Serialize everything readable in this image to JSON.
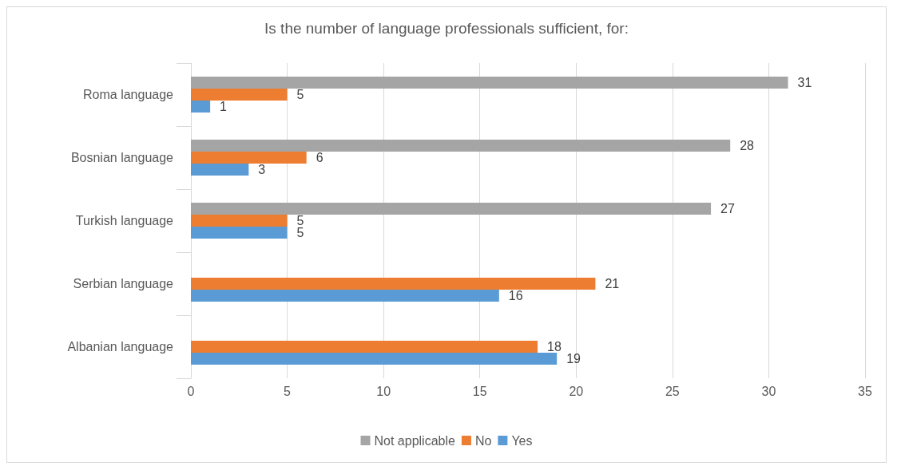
{
  "chart_data": {
    "type": "bar",
    "orientation": "horizontal",
    "title": "Is the number of language professionals sufficient, for:",
    "categories": [
      "Roma language",
      "Bosnian language",
      "Turkish language",
      "Serbian language",
      "Albanian language"
    ],
    "series": [
      {
        "name": "Not applicable",
        "color": "#a5a5a5",
        "values": [
          31,
          28,
          27,
          null,
          null
        ]
      },
      {
        "name": "No",
        "color": "#ed7d31",
        "values": [
          5,
          6,
          5,
          21,
          18
        ]
      },
      {
        "name": "Yes",
        "color": "#5b9bd5",
        "values": [
          1,
          3,
          5,
          16,
          19
        ]
      }
    ],
    "xlim": [
      0,
      35
    ],
    "xticks": [
      0,
      5,
      10,
      15,
      20,
      25,
      30,
      35
    ],
    "grid": "x",
    "legend": "bottom",
    "data_labels": true
  }
}
